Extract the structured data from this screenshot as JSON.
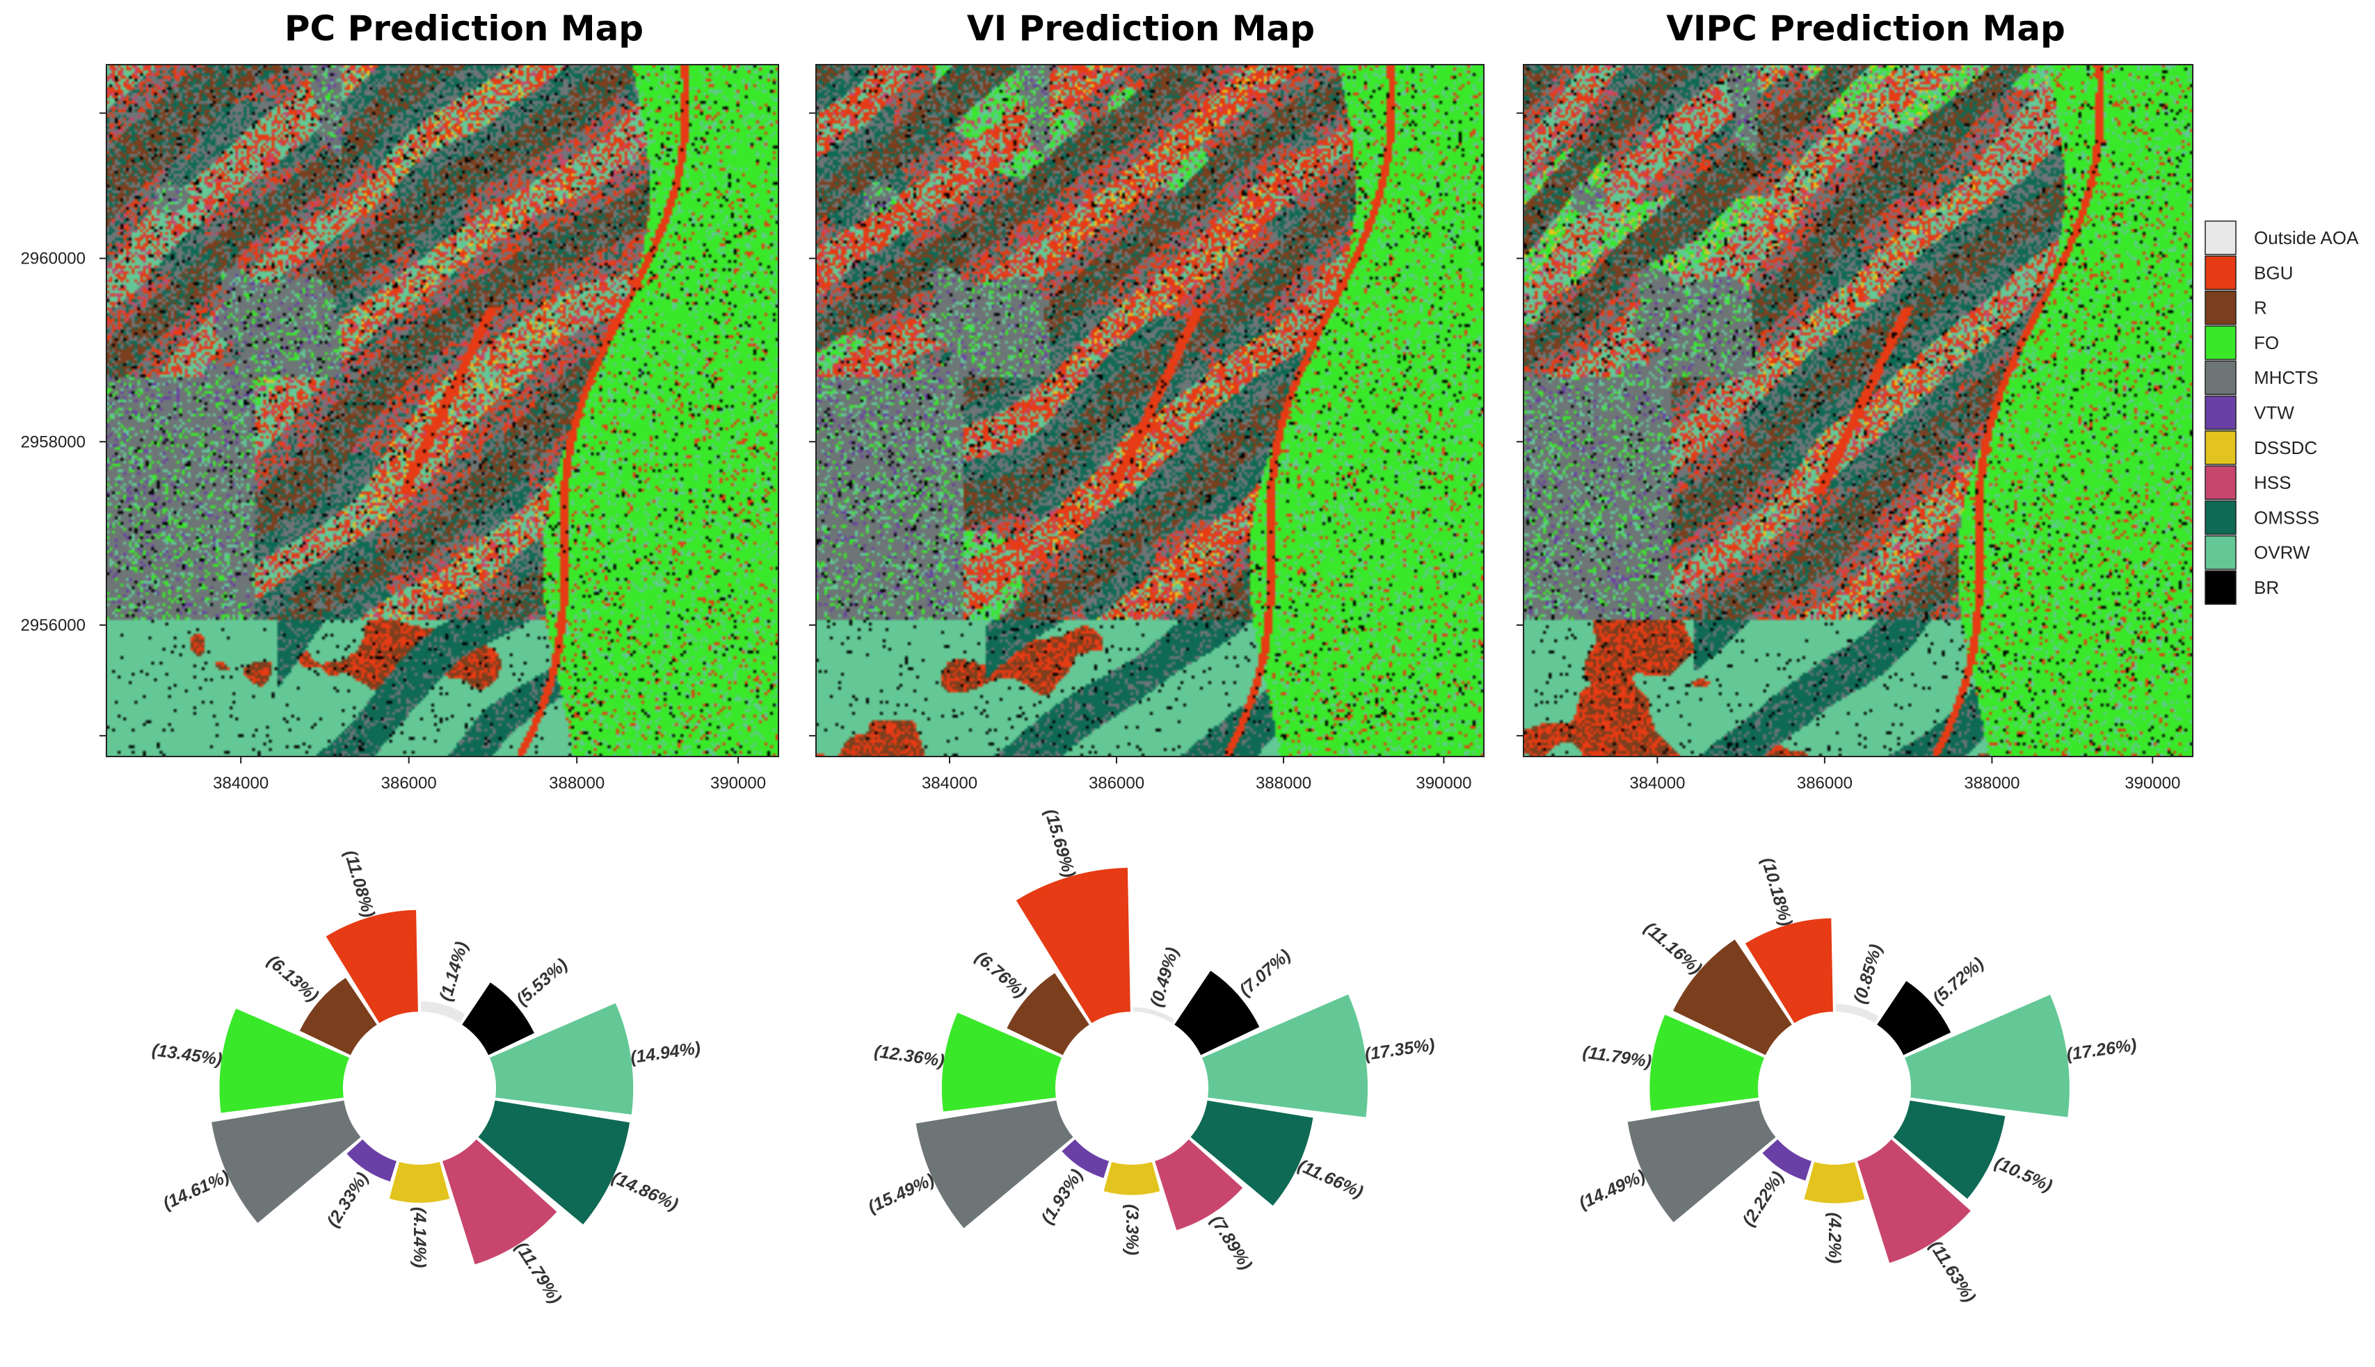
{
  "legend": {
    "items": [
      {
        "label": "Outside AOA",
        "color": "#e8e8e8"
      },
      {
        "label": "BGU",
        "color": "#e63b14"
      },
      {
        "label": "R",
        "color": "#7b3f1e"
      },
      {
        "label": "FO",
        "color": "#3ae82a"
      },
      {
        "label": "MHCTS",
        "color": "#6e7576"
      },
      {
        "label": "VTW",
        "color": "#6a3fa6"
      },
      {
        "label": "DSSDC",
        "color": "#e3c41e"
      },
      {
        "label": "HSS",
        "color": "#c8466e"
      },
      {
        "label": "OMSSS",
        "color": "#0f6a55"
      },
      {
        "label": "OVRW",
        "color": "#63c896"
      },
      {
        "label": "BR",
        "color": "#000000"
      }
    ]
  },
  "maps": [
    {
      "title": "PC Prediction Map"
    },
    {
      "title": "VI Prediction Map"
    },
    {
      "title": "VIPC Prediction Map"
    }
  ],
  "axes": {
    "x_ticks": [
      "384000",
      "386000",
      "388000",
      "390000"
    ],
    "y_ticks": [
      "2960000",
      "2958000",
      "2956000"
    ]
  },
  "chart_data": [
    {
      "type": "bar",
      "layout": "polar",
      "name": "PC",
      "categories": [
        "Outside AOA",
        "BR",
        "OVRW",
        "OMSSS",
        "HSS",
        "DSSDC",
        "VTW",
        "MHCTS",
        "FO",
        "R",
        "BGU"
      ],
      "values": [
        1.14,
        5.53,
        14.94,
        14.86,
        11.79,
        4.14,
        2.33,
        14.61,
        13.45,
        6.13,
        11.08
      ],
      "labels": [
        "(1.14%)",
        "(5.53%)",
        "(14.94%)",
        "(14.86%)",
        "(11.79%)",
        "(4.14%)",
        "(2.33%)",
        "(14.61%)",
        "(13.45%)",
        "(6.13%)",
        "(11.08%)"
      ]
    },
    {
      "type": "bar",
      "layout": "polar",
      "name": "VI",
      "categories": [
        "Outside AOA",
        "BR",
        "OVRW",
        "OMSSS",
        "HSS",
        "DSSDC",
        "VTW",
        "MHCTS",
        "FO",
        "R",
        "BGU"
      ],
      "values": [
        0.49,
        7.07,
        17.35,
        11.66,
        7.89,
        3.3,
        1.93,
        15.49,
        12.36,
        6.76,
        15.69
      ],
      "labels": [
        "(0.49%)",
        "(7.07%)",
        "(17.35%)",
        "(11.66%)",
        "(7.89%)",
        "(3.3%)",
        "(1.93%)",
        "(15.49%)",
        "(12.36%)",
        "(6.76%)",
        "(15.69%)"
      ]
    },
    {
      "type": "bar",
      "layout": "polar",
      "name": "VIPC",
      "categories": [
        "Outside AOA",
        "BR",
        "OVRW",
        "OMSSS",
        "HSS",
        "DSSDC",
        "VTW",
        "MHCTS",
        "FO",
        "R",
        "BGU"
      ],
      "values": [
        0.85,
        5.72,
        17.26,
        10.5,
        11.63,
        4.2,
        2.22,
        14.49,
        11.79,
        11.16,
        10.18
      ],
      "labels": [
        "(0.85%)",
        "(5.72%)",
        "(17.26%)",
        "(10.5%)",
        "(11.63%)",
        "(4.2%)",
        "(2.22%)",
        "(14.49%)",
        "(11.79%)",
        "(11.16%)",
        "(10.18%)"
      ]
    }
  ]
}
